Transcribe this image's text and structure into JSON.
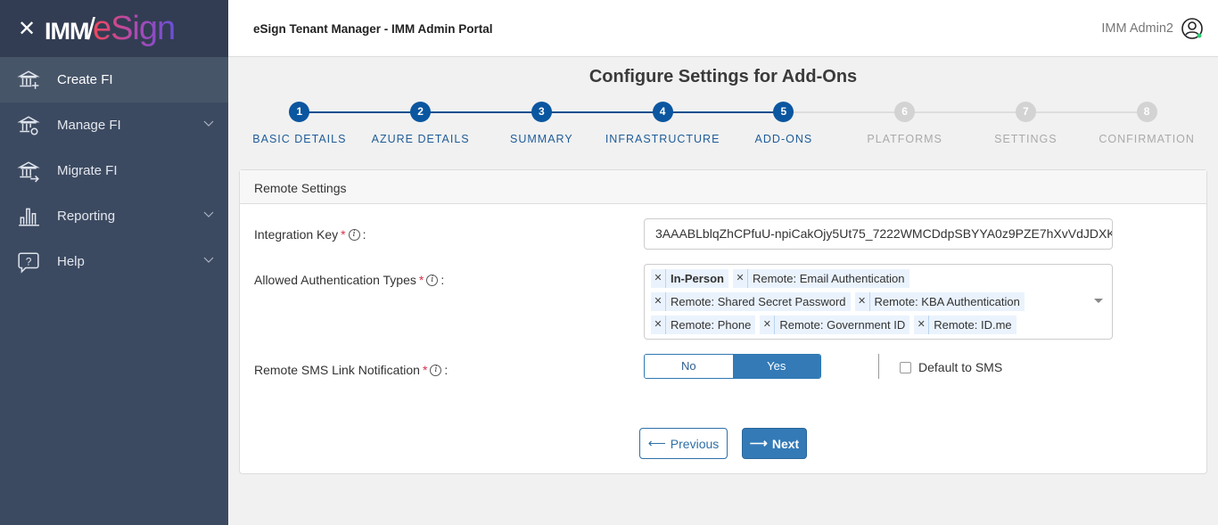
{
  "sidebar": {
    "logo": {
      "part1": "IMM",
      "part2": "eSign"
    },
    "items": [
      {
        "label": "Create FI",
        "icon": "bank-plus-icon",
        "active": true,
        "expandable": false
      },
      {
        "label": "Manage FI",
        "icon": "bank-gear-icon",
        "expandable": true
      },
      {
        "label": "Migrate FI",
        "icon": "bank-arrow-icon",
        "expandable": false
      },
      {
        "label": "Reporting",
        "icon": "bar-chart-icon",
        "expandable": true
      },
      {
        "label": "Help",
        "icon": "help-bubble-icon",
        "expandable": true
      }
    ]
  },
  "header": {
    "title": "eSign Tenant Manager - IMM Admin Portal",
    "user": "IMM Admin2",
    "status_color": "#2ecc71"
  },
  "page": {
    "title": "Configure Settings for Add-Ons"
  },
  "stepper": {
    "current": 5,
    "steps": [
      {
        "n": "1",
        "label": "BASIC DETAILS"
      },
      {
        "n": "2",
        "label": "AZURE DETAILS"
      },
      {
        "n": "3",
        "label": "SUMMARY"
      },
      {
        "n": "4",
        "label": "INFRASTRUCTURE"
      },
      {
        "n": "5",
        "label": "ADD-ONS"
      },
      {
        "n": "6",
        "label": "PLATFORMS"
      },
      {
        "n": "7",
        "label": "SETTINGS"
      },
      {
        "n": "8",
        "label": "CONFIRMATION"
      }
    ]
  },
  "card": {
    "title": "Remote Settings",
    "integration_key": {
      "label": "Integration Key",
      "value": "3AAABLblqZhCPfuU-npiCakOjy5Ut75_7222WMCDdpSBYYA0z9PZE7hXvVdJDXK"
    },
    "auth_types": {
      "label": "Allowed Authentication Types",
      "selected": [
        "In-Person",
        "Remote: Email Authentication",
        "Remote: Shared Secret Password",
        "Remote: KBA Authentication",
        "Remote: Phone",
        "Remote: Government ID",
        "Remote: ID.me"
      ]
    },
    "sms": {
      "label": "Remote SMS Link Notification",
      "no": "No",
      "yes": "Yes",
      "value": "Yes",
      "default_label": "Default to SMS",
      "default_checked": false
    },
    "colon": ":",
    "required": "*",
    "info": "i",
    "previous": "Previous",
    "next": "Next"
  }
}
